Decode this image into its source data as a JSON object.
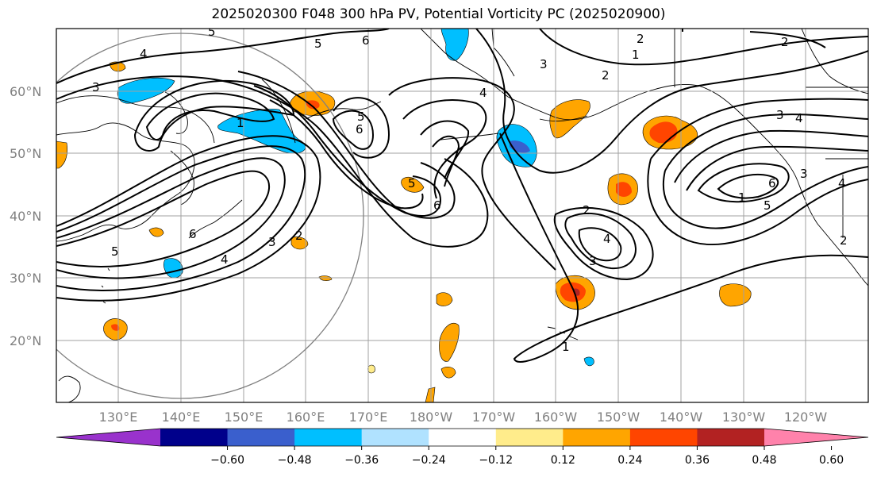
{
  "title": "2025020300 F048 300 hPa PV, Potential Vorticity PC (2025020900)",
  "lat_labels": [
    "60°N",
    "50°N",
    "40°N",
    "30°N",
    "20°N"
  ],
  "lon_labels": [
    "130°E",
    "140°E",
    "150°E",
    "160°E",
    "170°E",
    "180°W",
    "170°W",
    "160°W",
    "150°W",
    "140°W",
    "130°W",
    "120°W"
  ],
  "colorbar": {
    "colors": [
      "#9932cc",
      "#00008b",
      "#3a5fcd",
      "#00bfff",
      "#b0e2ff",
      "#ffffff",
      "#ffec8b",
      "#ffa500",
      "#ff4500",
      "#b22222",
      "#ff82ab"
    ],
    "ticks": [
      "−0.60",
      "−0.48",
      "−0.36",
      "−0.24",
      "−0.12",
      "0.12",
      "0.24",
      "0.36",
      "0.48",
      "0.60"
    ]
  },
  "contour_labels": [
    "5",
    "6",
    "5",
    "4",
    "3",
    "2",
    "2",
    "1",
    "2",
    "3",
    "4",
    "1",
    "5",
    "6",
    "3",
    "4",
    "5",
    "6",
    "2",
    "5",
    "6",
    "2",
    "3",
    "4",
    "1",
    "2",
    "3",
    "4",
    "3",
    "4",
    "5",
    "6",
    "1",
    "2"
  ]
}
